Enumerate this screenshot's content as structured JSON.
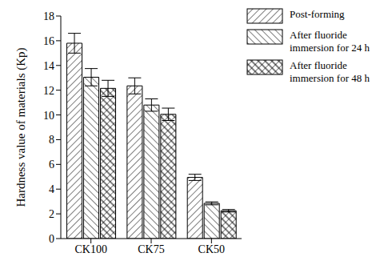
{
  "chart_data": {
    "type": "bar",
    "y_label": "Hardness value of materials (Kp)",
    "categories": [
      "CK100",
      "CK75",
      "CK50"
    ],
    "series": [
      {
        "name": "Post-forming",
        "color": "#000000",
        "values": [
          15.8,
          12.35,
          4.95
        ],
        "error": [
          0.8,
          0.65,
          0.25
        ]
      },
      {
        "name": "After fluoride immersion for 24 h",
        "color": "#000000",
        "values": [
          13.05,
          10.8,
          2.85
        ],
        "error": [
          0.7,
          0.5,
          0.12
        ]
      },
      {
        "name": "After fluoride immersion for 48 h",
        "color": "#000000",
        "values": [
          12.15,
          10.05,
          2.25
        ],
        "error": [
          0.65,
          0.5,
          0.1
        ]
      }
    ],
    "ylim": [
      0,
      18
    ],
    "yticks": [
      0,
      2,
      4,
      6,
      8,
      10,
      12,
      14,
      16,
      18
    ],
    "legend": "upper right"
  }
}
